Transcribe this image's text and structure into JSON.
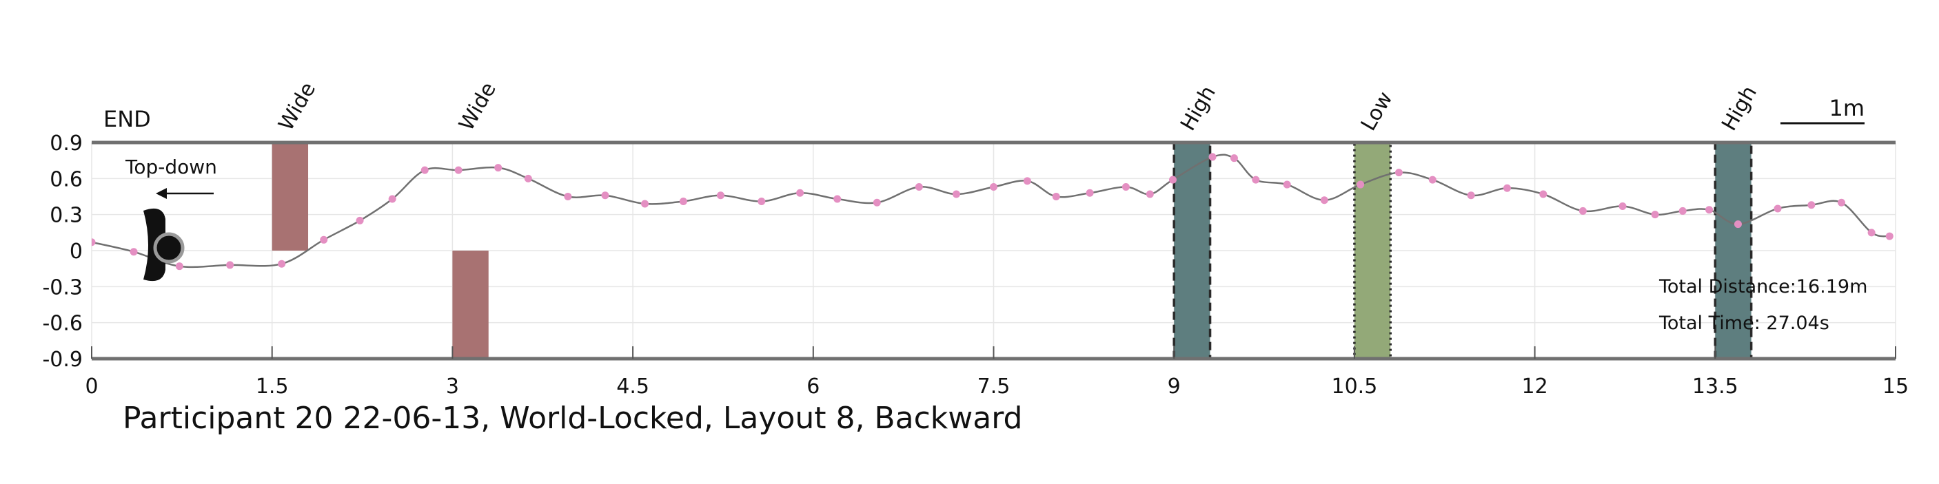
{
  "chart_data": {
    "type": "line",
    "title": "Participant 20 22-06-13, World-Locked, Layout 8, Backward",
    "xlabel": "",
    "ylabel": "",
    "xlim": [
      0,
      15
    ],
    "ylim": [
      -0.9,
      0.9
    ],
    "xticks": [
      "0",
      "1.5",
      "3",
      "4.5",
      "6",
      "7.5",
      "9",
      "10.5",
      "12",
      "13.5",
      "15"
    ],
    "yticks": [
      "0.9",
      "0.6",
      "0.3",
      "0",
      "-0.3",
      "-0.6",
      "-0.9"
    ],
    "grid": true,
    "end_label": "END",
    "orientation_label": "Top-down",
    "scale_label": "1m",
    "line_color": "#707070",
    "marker_color": "#e48fc2",
    "series": [
      {
        "x": [
          0.0,
          0.35,
          0.73,
          1.15,
          1.58,
          1.93,
          2.23,
          2.5,
          2.77,
          3.05,
          3.38,
          3.63,
          3.96,
          4.27,
          4.6,
          4.92,
          5.23,
          5.57,
          5.89,
          6.2,
          6.53,
          6.88,
          7.19,
          7.5,
          7.78,
          8.02,
          8.3,
          8.6,
          8.8,
          8.99,
          9.32,
          9.5,
          9.68,
          9.94,
          10.25,
          10.55,
          10.87,
          11.15,
          11.47,
          11.77,
          12.07,
          12.4,
          12.73,
          13.0,
          13.23,
          13.45,
          13.69,
          14.02,
          14.3,
          14.55,
          14.8,
          14.95
        ],
        "y": [
          0.07,
          -0.01,
          -0.13,
          -0.12,
          -0.11,
          0.09,
          0.25,
          0.43,
          0.67,
          0.67,
          0.69,
          0.6,
          0.45,
          0.46,
          0.39,
          0.41,
          0.46,
          0.41,
          0.48,
          0.43,
          0.4,
          0.53,
          0.47,
          0.53,
          0.58,
          0.45,
          0.48,
          0.53,
          0.47,
          0.59,
          0.78,
          0.77,
          0.59,
          0.55,
          0.42,
          0.55,
          0.65,
          0.59,
          0.46,
          0.52,
          0.47,
          0.33,
          0.37,
          0.3,
          0.33,
          0.34,
          0.22,
          0.35,
          0.38,
          0.4,
          0.15,
          0.12
        ]
      }
    ],
    "barriers": [
      {
        "label": "Wide",
        "x": 1.5,
        "width": 0.3,
        "y0": 0.0,
        "y1": 0.9,
        "color": "#a87272"
      },
      {
        "label": "Wide",
        "x": 3.0,
        "width": 0.3,
        "y0": -0.9,
        "y1": 0.0,
        "color": "#a87272"
      }
    ],
    "gates": [
      {
        "label": "High",
        "x": 9.0,
        "width": 0.3,
        "color": "#5e7e7f",
        "border": "dashed"
      },
      {
        "label": "Low",
        "x": 10.5,
        "width": 0.3,
        "color": "#93a978",
        "border": "dotted"
      },
      {
        "label": "High",
        "x": 13.5,
        "width": 0.3,
        "color": "#5e7e7f",
        "border": "dashed"
      }
    ],
    "stats": {
      "distance": "Total Distance:16.19m",
      "time": "Total Time: 27.04s"
    }
  }
}
